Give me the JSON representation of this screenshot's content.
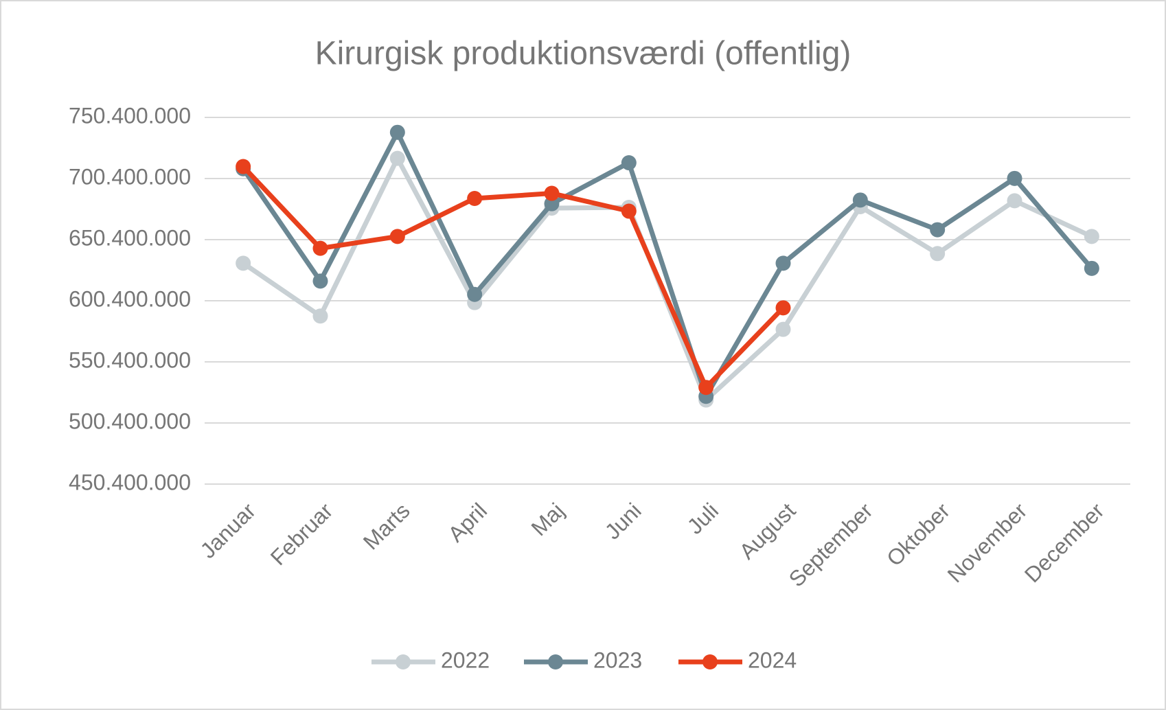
{
  "chart_data": {
    "type": "line",
    "title": "Kirurgisk produktionsværdi (offentlig)",
    "categories": [
      "Januar",
      "Februar",
      "Marts",
      "April",
      "Maj",
      "Juni",
      "Juli",
      "August",
      "September",
      "Oktober",
      "November",
      "December"
    ],
    "series": [
      {
        "name": "2022",
        "color": "#c8d0d4",
        "values": [
          631100000,
          587900000,
          716900000,
          598900000,
          676200000,
          676800000,
          519200000,
          577000000,
          677400000,
          639000000,
          682200000,
          653000000
        ]
      },
      {
        "name": "2023",
        "color": "#6b8793",
        "values": [
          708400000,
          616500000,
          738200000,
          605600000,
          679800000,
          713300000,
          522200000,
          631100000,
          682800000,
          658500000,
          700500000,
          626900000
        ]
      },
      {
        "name": "2024",
        "color": "#e8401c",
        "values": [
          710200000,
          643300000,
          653000000,
          684100000,
          688300000,
          673700000,
          529500000,
          594600000,
          null,
          null,
          null,
          null
        ]
      }
    ],
    "ylim": [
      450400000,
      750400000
    ],
    "yticks": [
      {
        "value": 450400000,
        "label": "450.400.000"
      },
      {
        "value": 500400000,
        "label": "500.400.000"
      },
      {
        "value": 550400000,
        "label": "550.400.000"
      },
      {
        "value": 600400000,
        "label": "600.400.000"
      },
      {
        "value": 650400000,
        "label": "650.400.000"
      },
      {
        "value": 700400000,
        "label": "700.400.000"
      },
      {
        "value": 750400000,
        "label": "750.400.000"
      }
    ],
    "grid": true,
    "legend": "bottom"
  }
}
